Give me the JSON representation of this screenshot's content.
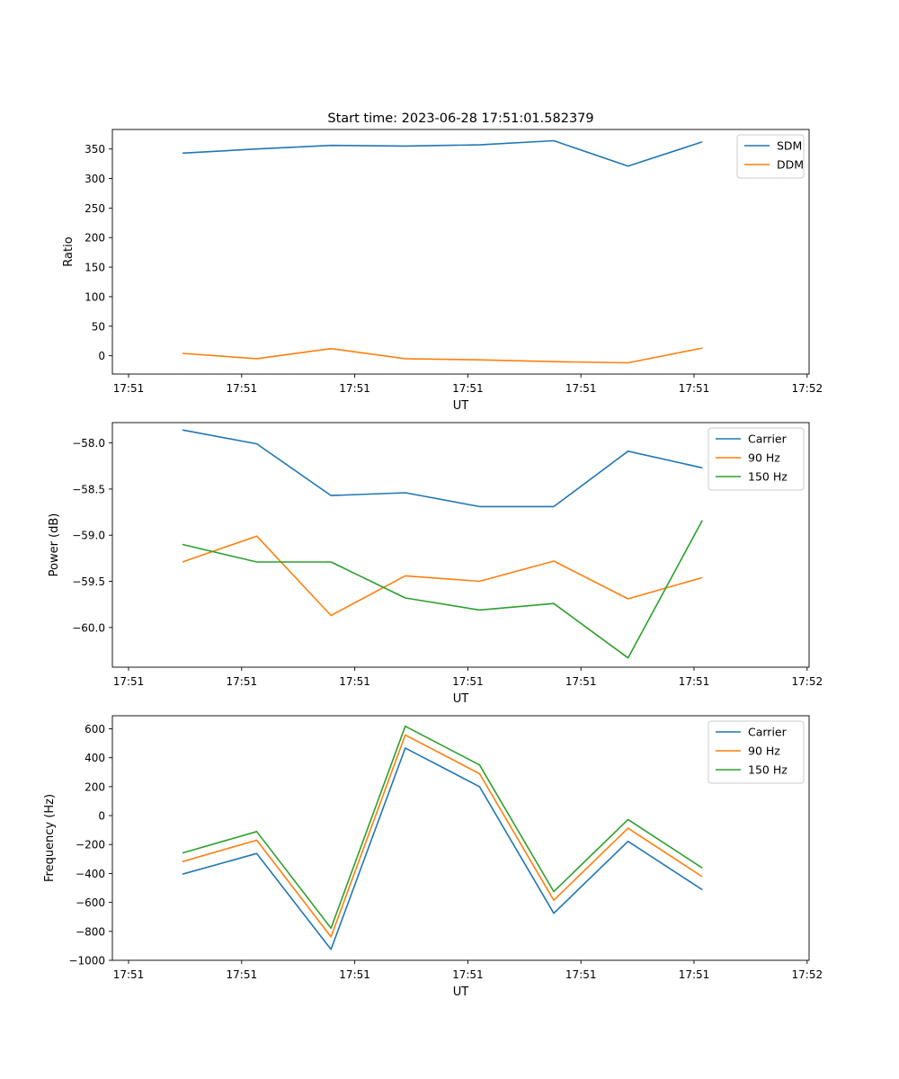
{
  "figure_title": "Start time: 2023-06-28 17:51:01.582379",
  "chart_data": [
    {
      "type": "line",
      "title": "Start time: 2023-06-28 17:51:01.582379",
      "xlabel": "UT",
      "ylabel": "Ratio",
      "x_tick_labels": [
        "17:51",
        "17:51",
        "17:51",
        "17:51",
        "17:51",
        "17:51",
        "17:52"
      ],
      "x_points": [
        1,
        2,
        3,
        4,
        5,
        6,
        7,
        8
      ],
      "xlim": [
        0.2,
        9.5
      ],
      "ylim": [
        -31,
        383
      ],
      "yticks": [
        0,
        50,
        100,
        150,
        200,
        250,
        300,
        350
      ],
      "grid": false,
      "legend_position": "top-right",
      "series": [
        {
          "name": "SDM",
          "color": "#1f77b4",
          "values": [
            343,
            350,
            356,
            355,
            357,
            364,
            321,
            362
          ]
        },
        {
          "name": "DDM",
          "color": "#ff7f0e",
          "values": [
            4,
            -5,
            12,
            -5,
            -7,
            -10,
            -12,
            13
          ]
        }
      ]
    },
    {
      "type": "line",
      "title": "",
      "xlabel": "UT",
      "ylabel": "Power (dB)",
      "x_tick_labels": [
        "17:51",
        "17:51",
        "17:51",
        "17:51",
        "17:51",
        "17:51",
        "17:52"
      ],
      "x_points": [
        1,
        2,
        3,
        4,
        5,
        6,
        7,
        8
      ],
      "xlim": [
        0.2,
        9.5
      ],
      "ylim": [
        -60.43,
        -57.78
      ],
      "yticks": [
        -60.0,
        -59.5,
        -59.0,
        -58.5,
        -58.0
      ],
      "grid": false,
      "legend_position": "top-right",
      "series": [
        {
          "name": "Carrier",
          "color": "#1f77b4",
          "values": [
            -57.86,
            -58.01,
            -58.57,
            -58.54,
            -58.69,
            -58.69,
            -58.09,
            -58.27
          ]
        },
        {
          "name": "90 Hz",
          "color": "#ff7f0e",
          "values": [
            -59.29,
            -59.01,
            -59.87,
            -59.44,
            -59.5,
            -59.28,
            -59.69,
            -59.46
          ]
        },
        {
          "name": "150 Hz",
          "color": "#2ca02c",
          "values": [
            -59.1,
            -59.29,
            -59.29,
            -59.68,
            -59.81,
            -59.74,
            -60.33,
            -58.84
          ]
        }
      ]
    },
    {
      "type": "line",
      "title": "",
      "xlabel": "UT",
      "ylabel": "Frequency (Hz)",
      "x_tick_labels": [
        "17:51",
        "17:51",
        "17:51",
        "17:51",
        "17:51",
        "17:51",
        "17:52"
      ],
      "x_points": [
        1,
        2,
        3,
        4,
        5,
        6,
        7,
        8
      ],
      "xlim": [
        0.2,
        9.5
      ],
      "ylim": [
        -1000,
        690
      ],
      "yticks": [
        -1000,
        -800,
        -600,
        -400,
        -200,
        0,
        200,
        400,
        600
      ],
      "grid": false,
      "legend_position": "top-right",
      "series": [
        {
          "name": "Carrier",
          "color": "#1f77b4",
          "values": [
            -405,
            -262,
            -925,
            467,
            200,
            -675,
            -178,
            -512
          ]
        },
        {
          "name": "90 Hz",
          "color": "#ff7f0e",
          "values": [
            -318,
            -170,
            -838,
            557,
            290,
            -585,
            -87,
            -422
          ]
        },
        {
          "name": "150 Hz",
          "color": "#2ca02c",
          "values": [
            -258,
            -110,
            -778,
            617,
            350,
            -525,
            -27,
            -362
          ]
        }
      ]
    }
  ]
}
